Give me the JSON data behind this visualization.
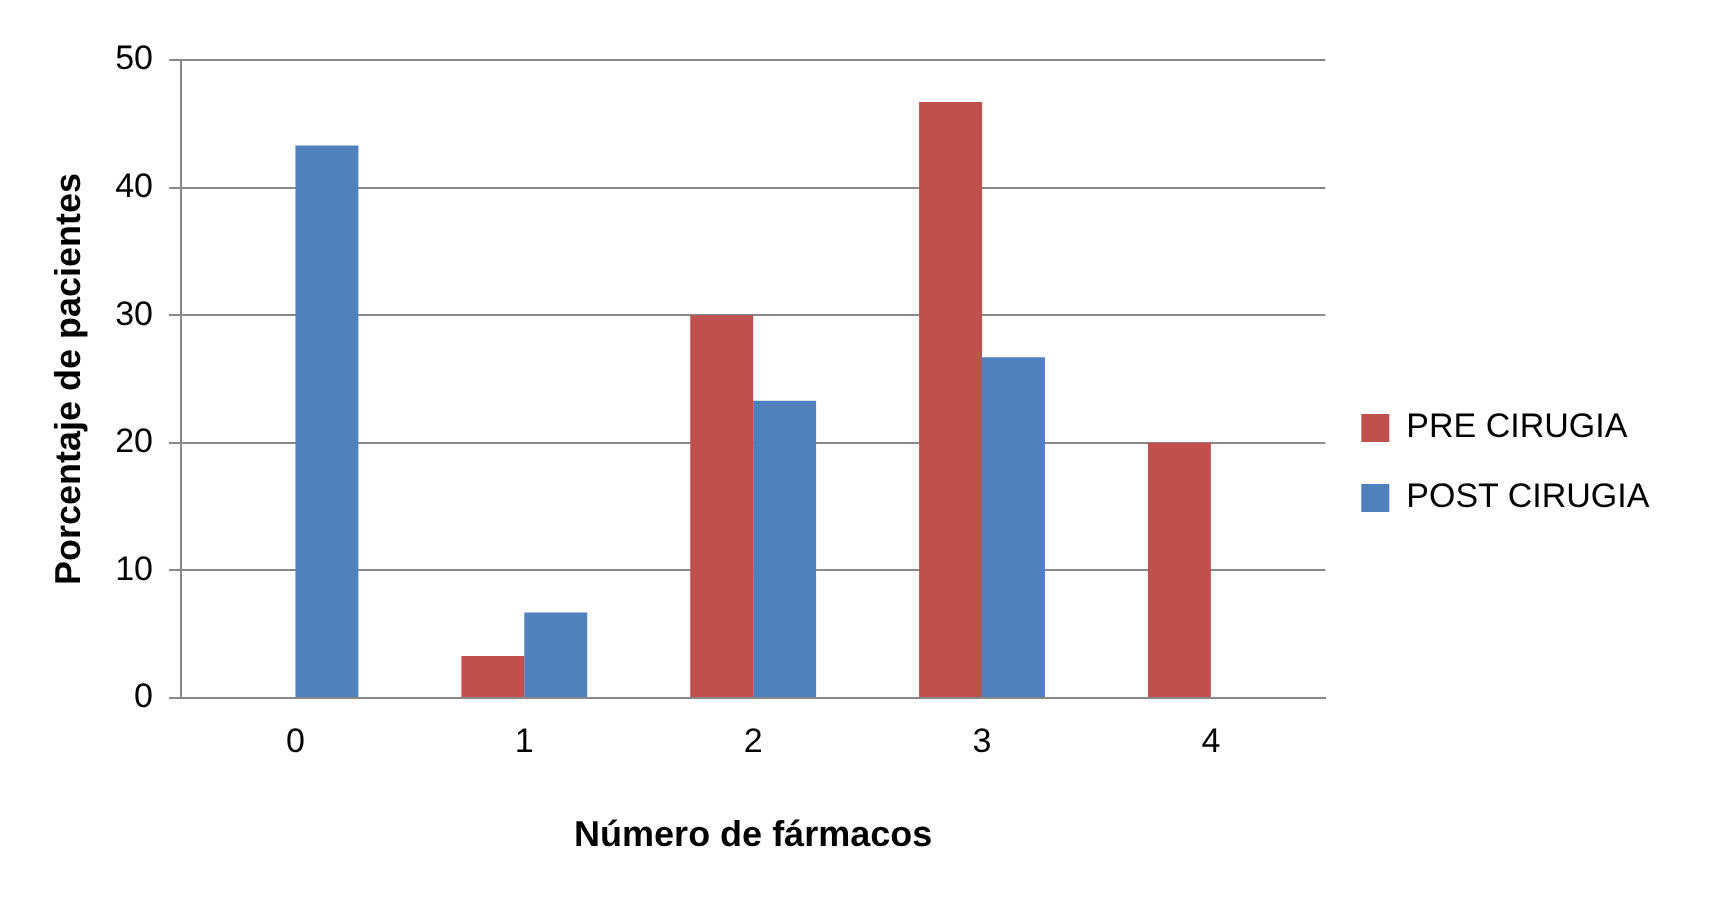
{
  "chart_data": {
    "type": "bar",
    "xlabel": "Número de fármacos",
    "ylabel": "Porcentaje de pacientes",
    "categories": [
      "0",
      "1",
      "2",
      "3",
      "4"
    ],
    "series": [
      {
        "name": "PRE CIRUGIA",
        "color": "#c0504d",
        "values": [
          0,
          3.3,
          30,
          46.7,
          20
        ]
      },
      {
        "name": "POST CIRUGIA",
        "color": "#4f81bd",
        "values": [
          43.3,
          6.7,
          23.3,
          26.7,
          0
        ]
      }
    ],
    "ylim": [
      0,
      50
    ],
    "yticks": [
      0,
      10,
      20,
      30,
      40,
      50
    ],
    "grid": "y",
    "legend": "right"
  }
}
